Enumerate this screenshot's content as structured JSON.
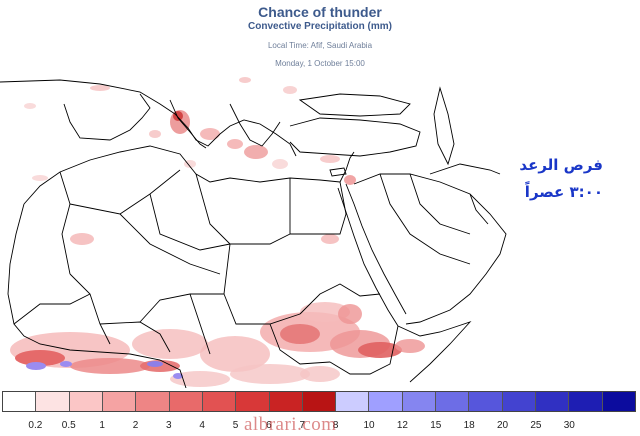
{
  "header": {
    "title": "Chance of thunder",
    "subtitle": "Convective Precipitation  (mm)",
    "local_time": "Local Time: Afif, Saudi Arabia",
    "date": "Monday, 1 October 15:00"
  },
  "annotation": {
    "line1": "فرص الرعد",
    "line2": "٣:٠٠ عصراً"
  },
  "legend": {
    "unit": "mm",
    "colors": [
      "#ffffff",
      "#fde3e3",
      "#fbc6c6",
      "#f5a3a3",
      "#ee8585",
      "#e86a6a",
      "#e25252",
      "#d83838",
      "#c92323",
      "#b81414",
      "#ccccff",
      "#9f9fff",
      "#8585f0",
      "#6d6de6",
      "#5656dc",
      "#4343d0",
      "#3030c2",
      "#1e1eb3",
      "#0c0c9e"
    ],
    "ticks": [
      "0.2",
      "0.5",
      "1",
      "2",
      "3",
      "4",
      "5",
      "6",
      "7",
      "8",
      "10",
      "12",
      "15",
      "18",
      "20",
      "25",
      "30"
    ]
  },
  "watermark": "albrari.com"
}
